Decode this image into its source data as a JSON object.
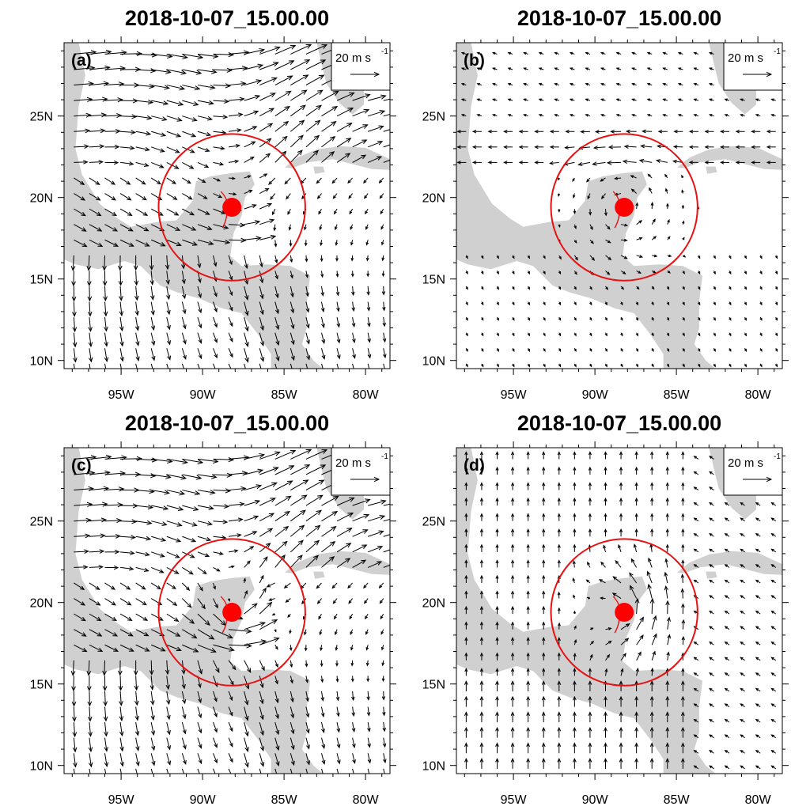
{
  "figure": {
    "ref_vector": {
      "value": "20",
      "unit": "m s",
      "exponent": "-1"
    },
    "map_extent": {
      "lon_range": [
        -98.5,
        -78.5
      ],
      "lat_range": [
        9.5,
        29.5
      ]
    },
    "lon_ticks": [
      {
        "lon": -95,
        "label": "95W"
      },
      {
        "lon": -90,
        "label": "90W"
      },
      {
        "lon": -85,
        "label": "85W"
      },
      {
        "lon": -80,
        "label": "80W"
      }
    ],
    "lat_ticks": [
      {
        "lat": 10,
        "label": "10N"
      },
      {
        "lat": 15,
        "label": "15N"
      },
      {
        "lat": 20,
        "label": "20N"
      },
      {
        "lat": 25,
        "label": "25N"
      }
    ],
    "storm": {
      "center_lon": -88.2,
      "center_lat": 19.4,
      "circle_radius_deg": 4.5,
      "marker_color": "#ff0000"
    },
    "colors": {
      "land": "#d0d0d0",
      "vector": "#000000",
      "storm": "#e81010"
    },
    "panels": [
      {
        "id": "a",
        "tag": "(a)",
        "title": "2018-10-07_15.00.00",
        "flow": "a"
      },
      {
        "id": "b",
        "tag": "(b)",
        "title": "2018-10-07_15.00.00",
        "flow": "b"
      },
      {
        "id": "c",
        "tag": "(c)",
        "title": "2018-10-07_15.00.00",
        "flow": "c"
      },
      {
        "id": "d",
        "tag": "(d)",
        "title": "2018-10-07_15.00.00",
        "flow": "d"
      }
    ]
  }
}
